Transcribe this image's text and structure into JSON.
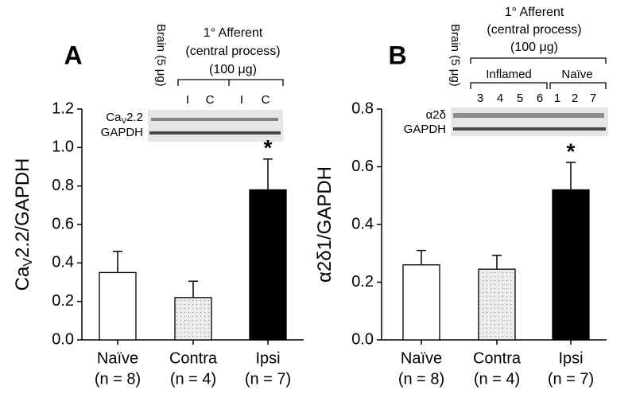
{
  "chart_data": [
    {
      "type": "bar",
      "panel": "A",
      "ylabel": [
        "Ca",
        "V",
        "2.2/GAPDH"
      ],
      "categories": [
        "Naïve",
        "Contra",
        "Ipsi"
      ],
      "n_labels": [
        "(n = 8)",
        "(n = 4)",
        "(n = 7)"
      ],
      "values": [
        0.35,
        0.22,
        0.78
      ],
      "errors": [
        0.11,
        0.085,
        0.16
      ],
      "colors": [
        "#ffffff",
        "#ececec",
        "#000000"
      ],
      "significance": [
        null,
        null,
        "*"
      ],
      "ylim": [
        0,
        1.2
      ],
      "yticks": [
        {
          "value": 0,
          "label": "0.0"
        },
        0.2,
        0.4,
        0.6,
        0.8,
        {
          "value": 1,
          "label": "1.0"
        },
        1.2
      ],
      "blot": {
        "brain": "Brain (5 μg)",
        "header": [
          "1° Afferent",
          "(central process)",
          "(100 μg)"
        ],
        "lanes": [
          "I",
          "C",
          "I",
          "C"
        ],
        "rows": [
          [
            "Ca",
            "V",
            "2.2"
          ],
          [
            "GAPDH"
          ]
        ]
      }
    },
    {
      "type": "bar",
      "panel": "B",
      "ylabel": [
        "α2δ1/GAPDH"
      ],
      "categories": [
        "Naïve",
        "Contra",
        "Ipsi"
      ],
      "n_labels": [
        "(n = 8)",
        "(n = 4)",
        "(n = 7)"
      ],
      "values": [
        0.26,
        0.245,
        0.52
      ],
      "errors": [
        0.05,
        0.048,
        0.095
      ],
      "colors": [
        "#ffffff",
        "#ececec",
        "#000000"
      ],
      "significance": [
        null,
        null,
        "*"
      ],
      "ylim": [
        0,
        0.8
      ],
      "yticks": [
        {
          "value": 0,
          "label": "0.0"
        },
        0.2,
        0.4,
        0.6,
        0.8
      ],
      "blot": {
        "brain": "Brain (5 μg)",
        "header": [
          "1° Afferent",
          "(central process)",
          "(100 μg)"
        ],
        "groups": [
          "Inflamed",
          "Naïve"
        ],
        "lanes": [
          "3",
          "4",
          "5",
          "6",
          "1",
          "2",
          "7"
        ],
        "rows": [
          [
            "α2δ"
          ],
          [
            "GAPDH"
          ]
        ]
      }
    }
  ]
}
